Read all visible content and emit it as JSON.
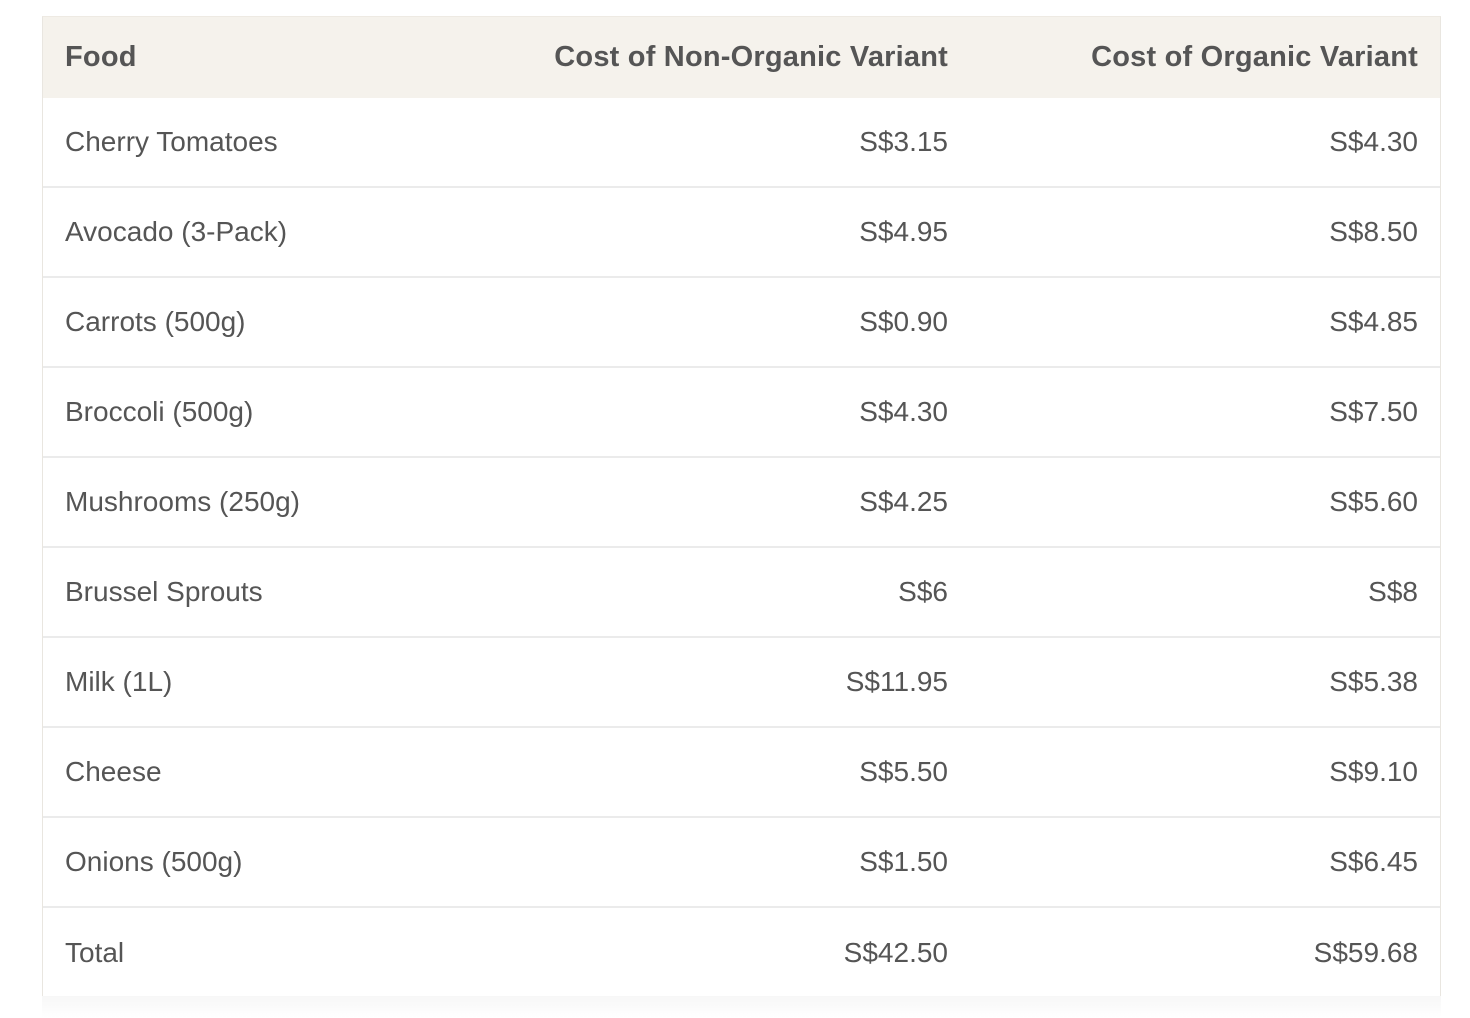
{
  "table": {
    "headers": [
      "Food",
      "Cost of Non-Organic Variant",
      "Cost of Organic Variant"
    ],
    "rows": [
      [
        "Cherry Tomatoes",
        "S$3.15",
        "S$4.30"
      ],
      [
        "Avocado (3-Pack)",
        "S$4.95",
        "S$8.50"
      ],
      [
        "Carrots (500g)",
        "S$0.90",
        "S$4.85"
      ],
      [
        "Broccoli (500g)",
        "S$4.30",
        "S$7.50"
      ],
      [
        "Mushrooms (250g)",
        "S$4.25",
        "S$5.60"
      ],
      [
        "Brussel Sprouts",
        "S$6",
        "S$8"
      ],
      [
        "Milk (1L)",
        "S$11.95",
        "S$5.38"
      ],
      [
        "Cheese",
        "S$5.50",
        "S$9.10"
      ],
      [
        "Onions (500g)",
        "S$1.50",
        "S$6.45"
      ],
      [
        "Total",
        "S$42.50",
        "S$59.68"
      ]
    ]
  },
  "colors": {
    "header_background": "#f5f2ec",
    "text": "#555555",
    "row_divider": "#ebebeb"
  }
}
